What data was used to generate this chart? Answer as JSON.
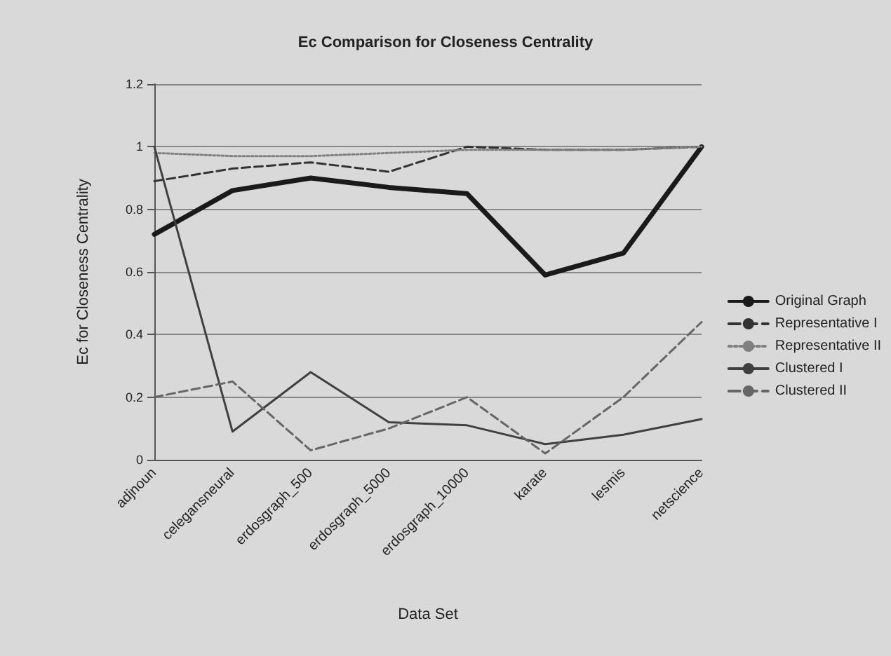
{
  "chart_data": {
    "type": "line",
    "title": "Ec Comparison for Closeness Centrality",
    "xlabel": "Data Set",
    "ylabel": "Ec for Closeness Centrality",
    "categories": [
      "adjnoun",
      "celegansneural",
      "erdosgraph_500",
      "erdosgraph_5000",
      "erdosgraph_10000",
      "karate",
      "lesmis",
      "netscience"
    ],
    "series": [
      {
        "name": "Original Graph",
        "color": "#1a1a1a",
        "line_style": "solid",
        "values": [
          0.72,
          0.86,
          0.9,
          0.87,
          0.85,
          0.59,
          0.66,
          1.0
        ]
      },
      {
        "name": "Representative I",
        "color": "#333333",
        "line_style": "dashed",
        "values": [
          0.89,
          0.93,
          0.95,
          0.92,
          1.0,
          0.99,
          0.99,
          1.0
        ]
      },
      {
        "name": "Representative II",
        "color": "#808080",
        "line_style": "dotted",
        "values": [
          0.98,
          0.97,
          0.97,
          0.98,
          0.99,
          0.99,
          0.99,
          1.0
        ]
      },
      {
        "name": "Clustered I",
        "color": "#404040",
        "line_style": "solid",
        "values": [
          1.0,
          0.09,
          0.28,
          0.12,
          0.11,
          0.05,
          0.08,
          0.13
        ]
      },
      {
        "name": "Clustered II",
        "color": "#666666",
        "line_style": "dashed",
        "values": [
          0.2,
          0.25,
          0.03,
          0.1,
          0.2,
          0.02,
          0.2,
          0.44
        ]
      }
    ],
    "ylim": [
      0,
      1.2
    ],
    "yticks": [
      0,
      0.2,
      0.4,
      0.6,
      0.8,
      1,
      1.2
    ],
    "grid": "y",
    "legend": "right",
    "marker": "none"
  }
}
